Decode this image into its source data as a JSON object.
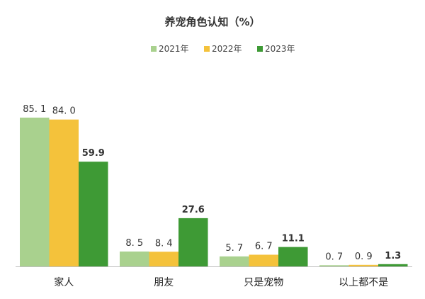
{
  "chart_data": {
    "type": "bar",
    "title": "养宠角色认知（%）",
    "categories": [
      "家人",
      "朋友",
      "只是宠物",
      "以上都不是"
    ],
    "series": [
      {
        "name": "2021年",
        "color": "#a9d18e",
        "values": [
          85.1,
          8.5,
          5.7,
          0.7
        ],
        "labels": [
          "85. 1",
          "8. 5",
          "5. 7",
          "0. 7"
        ]
      },
      {
        "name": "2022年",
        "color": "#f4c23b",
        "values": [
          84.0,
          8.4,
          6.7,
          0.9
        ],
        "labels": [
          "84. 0",
          "8. 4",
          "6. 7",
          "0. 9"
        ]
      },
      {
        "name": "2023年",
        "color": "#3e9a35",
        "values": [
          59.9,
          27.6,
          11.1,
          1.3
        ],
        "labels": [
          "59.9",
          "27.6",
          "11.1",
          "1.3"
        ]
      }
    ],
    "ylim": [
      0,
      90
    ],
    "grid": false,
    "legend": "top-center",
    "xlabel": "",
    "ylabel": ""
  }
}
